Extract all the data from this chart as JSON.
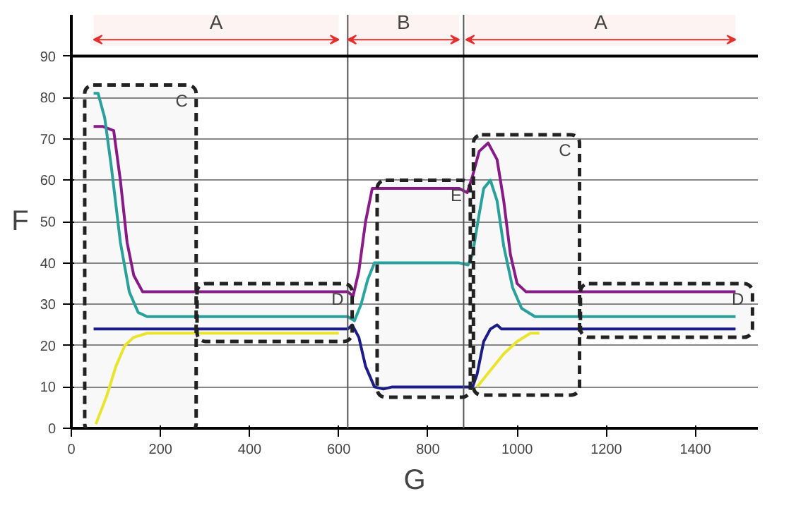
{
  "chart_data": {
    "type": "line",
    "xlabel": "G",
    "ylabel": "F",
    "xlim": [
      0,
      1540
    ],
    "ylim": [
      0,
      100
    ],
    "xticks": [
      0,
      200,
      400,
      600,
      800,
      1000,
      1200,
      1400
    ],
    "yticks": [
      0,
      10,
      20,
      30,
      40,
      50,
      60,
      70,
      80,
      90
    ],
    "grid": "y",
    "marker": "none",
    "line_style": "solid",
    "series": [
      {
        "color": "#8b1a8b",
        "x": [
          50,
          70,
          95,
          110,
          125,
          140,
          160,
          175,
          200,
          620,
          632,
          645,
          660,
          675,
          690,
          870,
          888,
          900,
          915,
          935,
          955,
          970,
          985,
          1000,
          1020,
          1040,
          1490
        ],
        "values": [
          73,
          73,
          72,
          60,
          45,
          37,
          33,
          33,
          33,
          33,
          32,
          38,
          50,
          58,
          58,
          58,
          57,
          61,
          67,
          69,
          65,
          55,
          42,
          35,
          33,
          33,
          33
        ]
      },
      {
        "color": "#2aa5a0",
        "x": [
          50,
          60,
          75,
          90,
          110,
          130,
          150,
          170,
          190,
          620,
          635,
          650,
          665,
          680,
          700,
          870,
          890,
          900,
          912,
          925,
          940,
          955,
          970,
          990,
          1010,
          1040,
          1490
        ],
        "values": [
          81,
          81,
          75,
          63,
          45,
          33,
          28,
          27,
          27,
          27,
          26,
          30,
          36,
          40,
          40,
          40,
          39.5,
          42,
          50,
          58,
          60,
          55,
          44,
          34,
          29,
          27,
          27
        ]
      },
      {
        "color": "#1c1c8c",
        "x": [
          50,
          620,
          630,
          645,
          660,
          680,
          700,
          720,
          900,
          910,
          925,
          940,
          955,
          965,
          1490
        ],
        "values": [
          24,
          24,
          25,
          22,
          15,
          10,
          9.5,
          10,
          10,
          13,
          21,
          24,
          25,
          24,
          24
        ]
      },
      {
        "color": "#f0ec30",
        "x": [
          55,
          80,
          100,
          120,
          140,
          170,
          200,
          600,
          750,
          910,
          940,
          970,
          1000,
          1030,
          1050
        ],
        "values": [
          1,
          8,
          15,
          20,
          22,
          23,
          23,
          23,
          null,
          10,
          14,
          18,
          21,
          23,
          23
        ]
      }
    ],
    "ref_lines": [
      {
        "axis": "x",
        "value": 620,
        "color": "#555555"
      },
      {
        "axis": "x",
        "value": 880,
        "color": "#555555"
      },
      {
        "axis": "y",
        "value": 90,
        "color": "#000000"
      }
    ],
    "bands": [
      {
        "axis": "x",
        "from": 50,
        "to": 600,
        "label": "A",
        "color": "#e03030"
      },
      {
        "axis": "x",
        "from": 620,
        "to": 870,
        "label": "B",
        "color": "#e03030"
      },
      {
        "axis": "x",
        "from": 885,
        "to": 1490,
        "label": "A",
        "color": "#e03030"
      },
      {
        "axis": "x",
        "from": 30,
        "to": 280,
        "label": "C"
      },
      {
        "axis": "x",
        "from": 282,
        "to": 630,
        "label": "D"
      },
      {
        "axis": "x",
        "from": 686,
        "to": 895,
        "label": "E"
      },
      {
        "axis": "x",
        "from": 902,
        "to": 1140,
        "label": "C"
      },
      {
        "axis": "x",
        "from": 1142,
        "to": 1528,
        "label": "D"
      }
    ]
  }
}
